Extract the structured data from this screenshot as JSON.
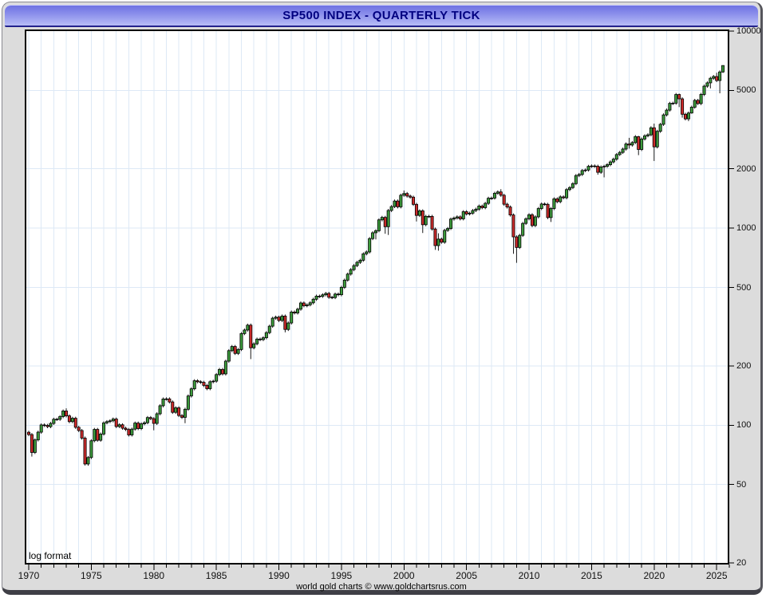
{
  "window": {
    "title": "SP500 INDEX - QUARTERLY TICK"
  },
  "footer": {
    "credit": "world gold charts © www.goldchartsrus.com"
  },
  "chart": {
    "note": "log format",
    "colors": {
      "up_fill": "#3c9b3c",
      "down_fill": "#cc2a2a",
      "outline": "#000000",
      "wick": "#000000",
      "grid": "#dde9f6",
      "plot_bg": "#ffffff",
      "window_bg": "#dcdcdc",
      "titlebar_top": "#6e72e2",
      "titlebar_bottom": "#b8bdf6",
      "title_text": "#000080"
    }
  },
  "chart_data": {
    "type": "candlestick",
    "title": "SP500 INDEX - QUARTERLY TICK",
    "frequency": "quarterly",
    "scale": "log",
    "grid": true,
    "ylim": [
      20,
      10000
    ],
    "y_axis_ticks": [
      10000,
      5000,
      2000,
      1000,
      500,
      200,
      100,
      50,
      20
    ],
    "x_axis_major_ticks": [
      1970,
      1975,
      1980,
      1985,
      1990,
      1995,
      2000,
      2005,
      2010,
      2015,
      2020,
      2025
    ],
    "x_minor_tick_step_years": 1,
    "x_range_years": [
      1970,
      2026
    ],
    "start_quarter": "1970Q1",
    "end_quarter": "2025Q3",
    "first_open": 92.06,
    "closes": [
      89.63,
      72.72,
      84.21,
      92.15,
      100.31,
      99.7,
      98.34,
      102.09,
      107.2,
      107.14,
      110.55,
      118.05,
      111.52,
      104.26,
      108.43,
      97.55,
      93.98,
      86.0,
      63.54,
      68.56,
      83.36,
      95.19,
      83.87,
      90.19,
      102.77,
      104.28,
      105.24,
      107.46,
      98.42,
      100.48,
      96.53,
      95.1,
      89.21,
      95.53,
      102.54,
      96.11,
      101.59,
      102.91,
      109.32,
      107.94,
      102.09,
      114.24,
      125.46,
      135.76,
      136.0,
      131.21,
      116.18,
      122.55,
      111.96,
      109.61,
      120.42,
      140.64,
      152.96,
      168.11,
      166.07,
      164.93,
      159.18,
      153.18,
      166.1,
      167.24,
      180.66,
      191.85,
      182.08,
      211.28,
      238.9,
      250.84,
      231.32,
      242.17,
      291.7,
      304.0,
      321.83,
      247.08,
      258.89,
      273.5,
      271.91,
      277.72,
      294.87,
      317.98,
      349.15,
      353.4,
      339.94,
      358.02,
      306.05,
      330.22,
      375.22,
      371.16,
      387.86,
      417.09,
      403.69,
      408.14,
      417.8,
      435.71,
      451.67,
      450.53,
      458.93,
      466.45,
      445.77,
      444.27,
      462.69,
      459.27,
      500.71,
      544.75,
      584.41,
      615.93,
      645.5,
      670.63,
      687.31,
      740.74,
      757.12,
      885.14,
      947.28,
      970.43,
      1101.75,
      1133.84,
      1017.01,
      1229.23,
      1286.37,
      1372.71,
      1282.71,
      1469.25,
      1498.58,
      1454.6,
      1436.51,
      1320.28,
      1160.33,
      1224.42,
      1040.94,
      1148.08,
      1147.39,
      989.82,
      815.28,
      879.82,
      848.18,
      974.5,
      995.97,
      1111.92,
      1126.21,
      1140.84,
      1114.58,
      1211.92,
      1180.59,
      1191.33,
      1228.81,
      1248.29,
      1294.83,
      1270.2,
      1335.85,
      1418.3,
      1420.86,
      1503.35,
      1526.75,
      1468.36,
      1322.7,
      1280.0,
      1166.36,
      903.25,
      797.87,
      919.32,
      1057.08,
      1115.1,
      1169.43,
      1030.71,
      1141.2,
      1257.64,
      1325.83,
      1320.64,
      1131.42,
      1257.6,
      1408.47,
      1362.16,
      1440.67,
      1426.19,
      1569.19,
      1606.28,
      1681.55,
      1848.36,
      1872.34,
      1960.23,
      1972.29,
      2058.9,
      2067.89,
      2063.11,
      1920.03,
      2043.94,
      2059.74,
      2098.86,
      2168.27,
      2238.83,
      2362.72,
      2423.41,
      2519.36,
      2673.61,
      2640.87,
      2718.37,
      2913.98,
      2506.85,
      2834.4,
      2941.76,
      2976.74,
      3230.78,
      2584.59,
      3100.29,
      3363.0,
      3756.07,
      3972.89,
      4297.5,
      4307.54,
      4766.18,
      4530.41,
      3785.38,
      3585.62,
      3839.5,
      4109.31,
      4450.38,
      4288.05,
      4769.83,
      5254.35,
      5460.48,
      5762.48,
      5881.63,
      5611.85,
      6204.95,
      6688.46
    ],
    "wick_overrides": {
      "1970Q2": {
        "low": 69.29
      },
      "1973Q1": {
        "high": 121.74
      },
      "1974Q4": {
        "low": 62.28
      },
      "1980Q1": {
        "low": 94.23
      },
      "1982Q3": {
        "low": 102.42
      },
      "1987Q4": {
        "high": 328.08,
        "low": 216.46
      },
      "1990Q3": {
        "low": 295.98
      },
      "1997Q4": {
        "low": 876.99
      },
      "1998Q3": {
        "low": 936.46
      },
      "1998Q4": {
        "low": 923.32
      },
      "2000Q1": {
        "high": 1552.87
      },
      "2001Q1": {
        "low": 1081.19
      },
      "2001Q3": {
        "low": 944.75
      },
      "2002Q3": {
        "low": 775.68
      },
      "2002Q4": {
        "high": 941.82,
        "low": 768.63
      },
      "2007Q4": {
        "high": 1576.09
      },
      "2008Q4": {
        "low": 741.02
      },
      "2009Q1": {
        "low": 666.79
      },
      "2010Q2": {
        "low": 1010.91
      },
      "2011Q4": {
        "low": 1074.77
      },
      "2015Q3": {
        "low": 1867.01
      },
      "2016Q1": {
        "low": 1810.1
      },
      "2018Q1": {
        "high": 2872.87,
        "low": 2532.69
      },
      "2018Q4": {
        "high": 2940.91,
        "low": 2346.58
      },
      "2020Q1": {
        "high": 3393.52,
        "low": 2191.86
      },
      "2022Q1": {
        "high": 4818.62,
        "low": 4114.65
      },
      "2022Q2": {
        "low": 3636.87
      },
      "2022Q4": {
        "low": 3491.58
      },
      "2023Q1": {
        "low": 3808.86
      },
      "2024Q3": {
        "low": 5119.26
      },
      "2025Q1": {
        "high": 6147.43
      },
      "2025Q2": {
        "low": 4835.04
      },
      "2025Q3": {
        "high": 6699.52,
        "low": 6134.0
      }
    }
  }
}
